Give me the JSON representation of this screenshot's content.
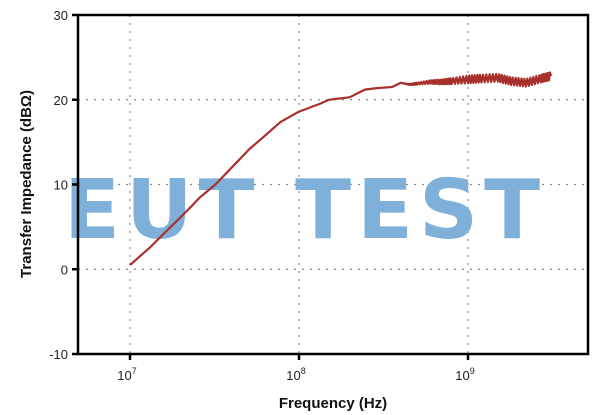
{
  "chart_data": {
    "type": "line",
    "title": "",
    "xlabel": "Frequency (Hz)",
    "ylabel": "Transfer Impedance (dBΩ)",
    "xscale": "log",
    "xlim": [
      5000000,
      5000000000
    ],
    "ylim": [
      -10,
      30
    ],
    "x_ticks": [
      10000000,
      100000000,
      1000000000
    ],
    "x_tick_labels": [
      {
        "base": "10",
        "exp": "7"
      },
      {
        "base": "10",
        "exp": "8"
      },
      {
        "base": "10",
        "exp": "9"
      }
    ],
    "y_ticks": [
      -10,
      0,
      10,
      20,
      30
    ],
    "y_tick_labels": [
      "-10",
      "0",
      "10",
      "20",
      "30"
    ],
    "grid": "dotted",
    "legend": null,
    "watermark": "EUT TEST",
    "colors": {
      "line": "#a8302c",
      "watermark": "#7fb0d9",
      "axis": "#000000",
      "grid": "#888888"
    },
    "series": [
      {
        "name": "Transfer Impedance",
        "x": [
          10000000,
          13000000,
          17000000,
          22000000,
          26000000,
          32000000,
          40000000,
          51000000,
          60000000,
          78000000,
          100000000,
          132000000,
          150000000,
          200000000,
          245000000,
          300000000,
          355000000,
          400000000,
          450000000,
          500000000,
          600000000,
          700000000,
          800000000,
          1000000000,
          1200000000,
          1500000000,
          1800000000,
          2200000000,
          2700000000,
          3100000000
        ],
        "y": [
          0.5,
          2.5,
          4.8,
          7.0,
          8.5,
          10.0,
          12.0,
          14.2,
          15.4,
          17.4,
          18.6,
          19.5,
          20.0,
          20.3,
          21.2,
          21.4,
          21.5,
          22.0,
          21.8,
          21.9,
          22.1,
          22.1,
          22.2,
          22.4,
          22.5,
          22.6,
          22.2,
          22.0,
          22.5,
          22.8
        ]
      }
    ]
  }
}
